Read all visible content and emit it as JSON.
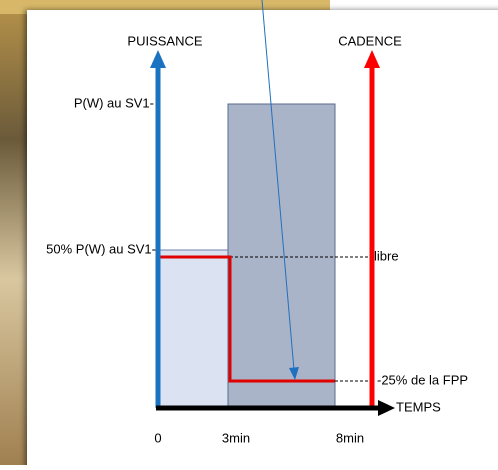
{
  "axes": {
    "y_left": "PUISSANCE",
    "y_right": "CADENCE",
    "x": "TEMPS"
  },
  "left_labels": [
    "P(W) au SV1-",
    "50% P(W) au SV1-"
  ],
  "right_labels": [
    "libre",
    "-25% de la FPP"
  ],
  "x_labels": [
    "0",
    "3min",
    "8min"
  ]
}
